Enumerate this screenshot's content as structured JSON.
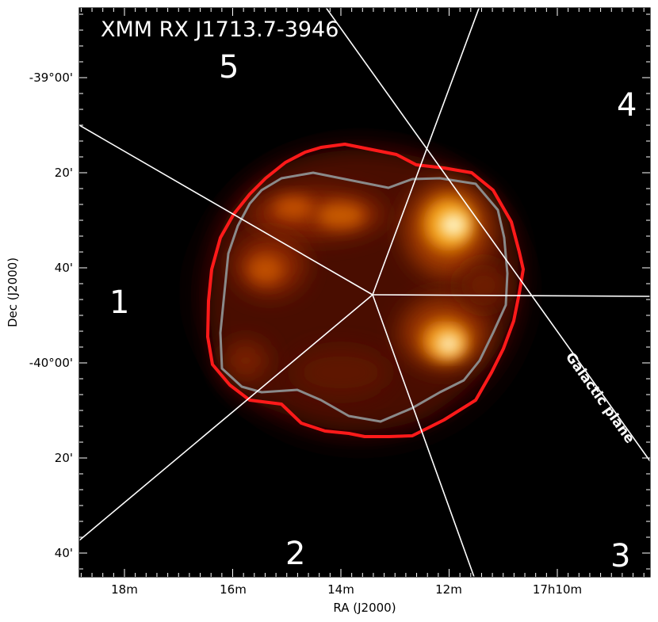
{
  "image": {
    "title": "XMM RX J1713.7-3946",
    "colormap": "black-red-orange-yellow-white (heat)",
    "background_color": "#000000",
    "outer_contour_color": "#ff1a1a",
    "inner_contour_color": "#8a8a8a",
    "sector_line_color": "#ffffff",
    "galactic_plane_label": "Galactic plane"
  },
  "axes": {
    "xlabel": "RA (J2000)",
    "ylabel": "Dec (J2000)",
    "x_ticks": [
      "18m",
      "16m",
      "14m",
      "12m",
      "17h10m"
    ],
    "y_ticks": [
      "-39°00'",
      "20'",
      "40'",
      "-40°00'",
      "20'",
      "40'"
    ]
  },
  "regions": [
    {
      "id": "1",
      "label": "1"
    },
    {
      "id": "2",
      "label": "2"
    },
    {
      "id": "3",
      "label": "3"
    },
    {
      "id": "4",
      "label": "4"
    },
    {
      "id": "5",
      "label": "5"
    }
  ]
}
